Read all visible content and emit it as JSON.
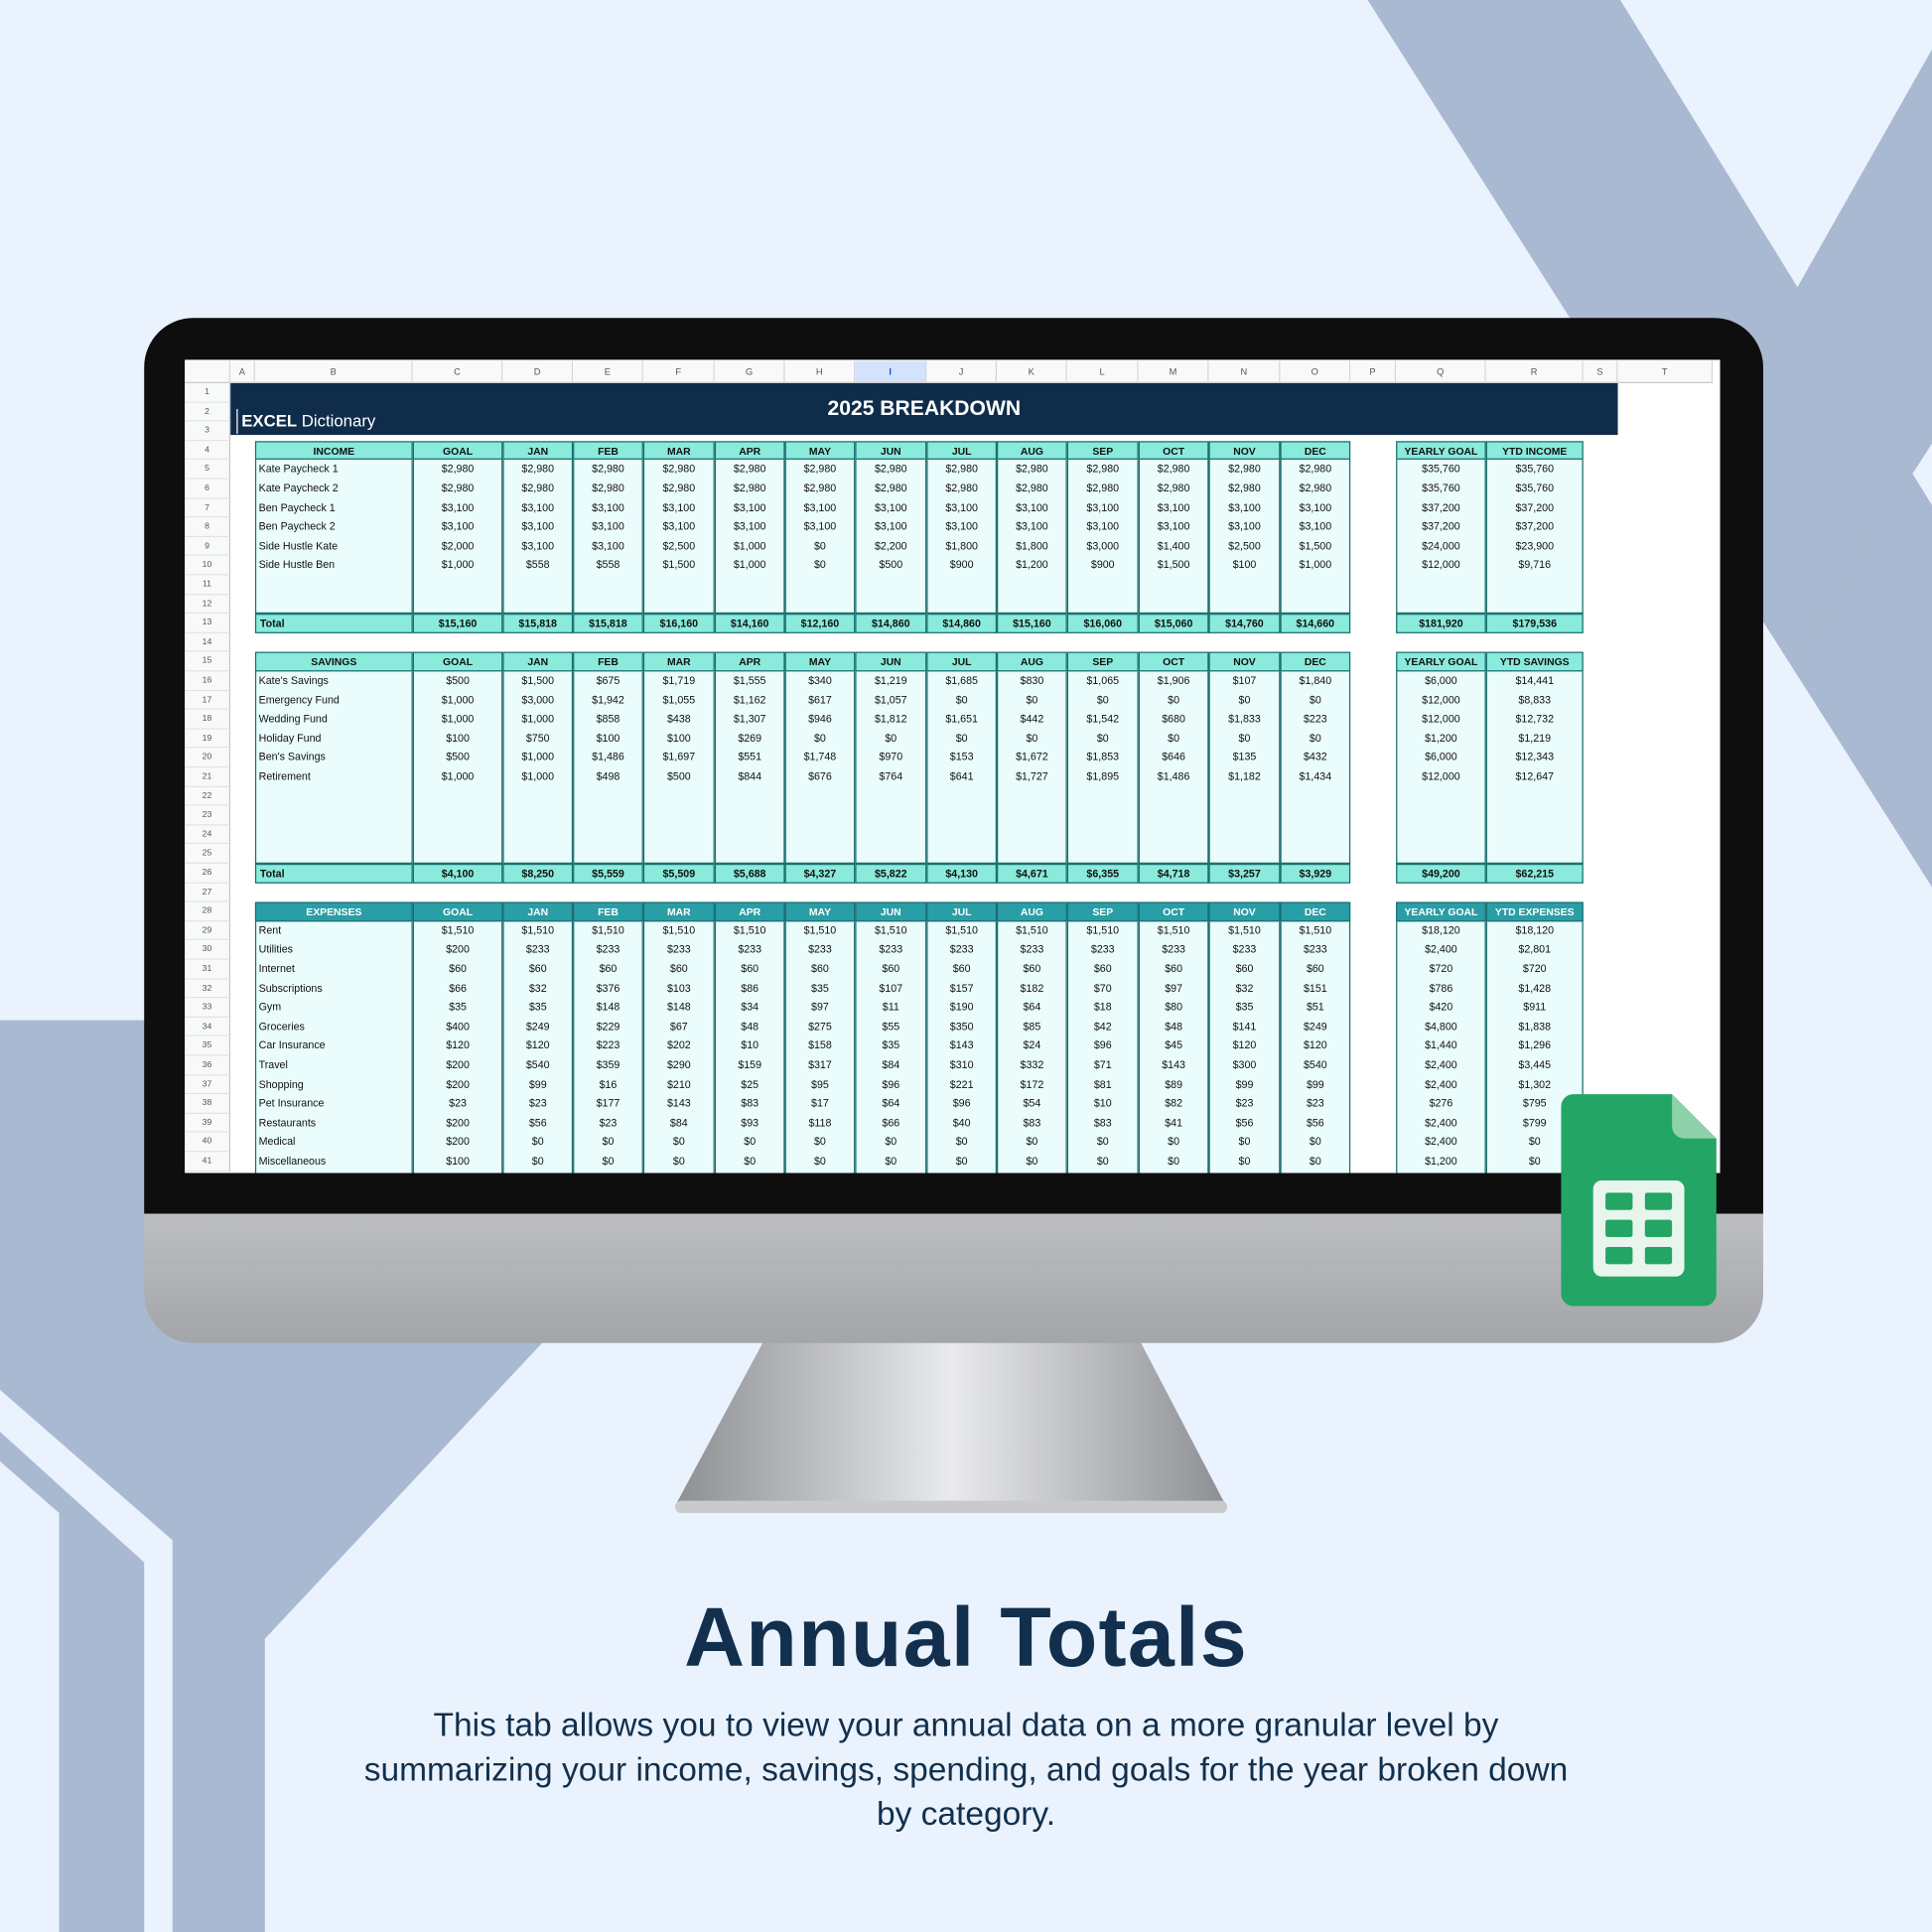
{
  "sheet": {
    "column_headers": [
      "A",
      "B",
      "C",
      "D",
      "E",
      "F",
      "G",
      "H",
      "I",
      "J",
      "K",
      "L",
      "M",
      "N",
      "O",
      "P",
      "Q",
      "R",
      "S",
      "T"
    ],
    "row_numbers": [
      1,
      2,
      3,
      4,
      5,
      6,
      7,
      8,
      9,
      10,
      11,
      12,
      13,
      14,
      15,
      16,
      17,
      18,
      19,
      20,
      21,
      22,
      23,
      24,
      25,
      26,
      27,
      28,
      29,
      30,
      31,
      32,
      33,
      34,
      35,
      36,
      37,
      38,
      39,
      40,
      41
    ],
    "logo": {
      "brand": "EXCEL",
      "name": "Dictionary"
    },
    "title": "2025 BREAKDOWN",
    "sections": [
      {
        "header": [
          "INCOME",
          "GOAL",
          "JAN",
          "FEB",
          "MAR",
          "APR",
          "MAY",
          "JUN",
          "JUL",
          "AUG",
          "SEP",
          "OCT",
          "NOV",
          "DEC"
        ],
        "summary_header": [
          "YEARLY GOAL",
          "YTD INCOME"
        ],
        "rows": [
          {
            "label": "Kate Paycheck 1",
            "monthly": [
              "$2,980",
              "$2,980",
              "$2,980",
              "$2,980",
              "$2,980",
              "$2,980",
              "$2,980",
              "$2,980",
              "$2,980",
              "$2,980",
              "$2,980",
              "$2,980",
              "$2,980"
            ],
            "summary": [
              "$35,760",
              "$35,760"
            ]
          },
          {
            "label": "Kate Paycheck 2",
            "monthly": [
              "$2,980",
              "$2,980",
              "$2,980",
              "$2,980",
              "$2,980",
              "$2,980",
              "$2,980",
              "$2,980",
              "$2,980",
              "$2,980",
              "$2,980",
              "$2,980",
              "$2,980"
            ],
            "summary": [
              "$35,760",
              "$35,760"
            ]
          },
          {
            "label": "Ben Paycheck 1",
            "monthly": [
              "$3,100",
              "$3,100",
              "$3,100",
              "$3,100",
              "$3,100",
              "$3,100",
              "$3,100",
              "$3,100",
              "$3,100",
              "$3,100",
              "$3,100",
              "$3,100",
              "$3,100"
            ],
            "summary": [
              "$37,200",
              "$37,200"
            ]
          },
          {
            "label": "Ben Paycheck 2",
            "monthly": [
              "$3,100",
              "$3,100",
              "$3,100",
              "$3,100",
              "$3,100",
              "$3,100",
              "$3,100",
              "$3,100",
              "$3,100",
              "$3,100",
              "$3,100",
              "$3,100",
              "$3,100"
            ],
            "summary": [
              "$37,200",
              "$37,200"
            ]
          },
          {
            "label": "Side Hustle Kate",
            "monthly": [
              "$2,000",
              "$3,100",
              "$3,100",
              "$2,500",
              "$1,000",
              "$0",
              "$2,200",
              "$1,800",
              "$1,800",
              "$3,000",
              "$1,400",
              "$2,500",
              "$1,500"
            ],
            "summary": [
              "$24,000",
              "$23,900"
            ]
          },
          {
            "label": "Side Hustle Ben",
            "monthly": [
              "$1,000",
              "$558",
              "$558",
              "$1,500",
              "$1,000",
              "$0",
              "$500",
              "$900",
              "$1,200",
              "$900",
              "$1,500",
              "$100",
              "$1,000"
            ],
            "summary": [
              "$12,000",
              "$9,716"
            ]
          }
        ],
        "total": {
          "label": "Total",
          "monthly": [
            "$15,160",
            "$15,818",
            "$15,818",
            "$16,160",
            "$14,160",
            "$12,160",
            "$14,860",
            "$14,860",
            "$15,160",
            "$16,060",
            "$15,060",
            "$14,760",
            "$14,660"
          ],
          "summary": [
            "$181,920",
            "$179,536"
          ]
        }
      },
      {
        "header": [
          "SAVINGS",
          "GOAL",
          "JAN",
          "FEB",
          "MAR",
          "APR",
          "MAY",
          "JUN",
          "JUL",
          "AUG",
          "SEP",
          "OCT",
          "NOV",
          "DEC"
        ],
        "summary_header": [
          "YEARLY GOAL",
          "YTD SAVINGS"
        ],
        "rows": [
          {
            "label": "Kate's Savings",
            "monthly": [
              "$500",
              "$1,500",
              "$675",
              "$1,719",
              "$1,555",
              "$340",
              "$1,219",
              "$1,685",
              "$830",
              "$1,065",
              "$1,906",
              "$107",
              "$1,840"
            ],
            "summary": [
              "$6,000",
              "$14,441"
            ]
          },
          {
            "label": "Emergency Fund",
            "monthly": [
              "$1,000",
              "$3,000",
              "$1,942",
              "$1,055",
              "$1,162",
              "$617",
              "$1,057",
              "$0",
              "$0",
              "$0",
              "$0",
              "$0",
              "$0"
            ],
            "summary": [
              "$12,000",
              "$8,833"
            ]
          },
          {
            "label": "Wedding Fund",
            "monthly": [
              "$1,000",
              "$1,000",
              "$858",
              "$438",
              "$1,307",
              "$946",
              "$1,812",
              "$1,651",
              "$442",
              "$1,542",
              "$680",
              "$1,833",
              "$223"
            ],
            "summary": [
              "$12,000",
              "$12,732"
            ]
          },
          {
            "label": "Holiday Fund",
            "monthly": [
              "$100",
              "$750",
              "$100",
              "$100",
              "$269",
              "$0",
              "$0",
              "$0",
              "$0",
              "$0",
              "$0",
              "$0",
              "$0"
            ],
            "summary": [
              "$1,200",
              "$1,219"
            ]
          },
          {
            "label": "Ben's Savings",
            "monthly": [
              "$500",
              "$1,000",
              "$1,486",
              "$1,697",
              "$551",
              "$1,748",
              "$970",
              "$153",
              "$1,672",
              "$1,853",
              "$646",
              "$135",
              "$432"
            ],
            "summary": [
              "$6,000",
              "$12,343"
            ]
          },
          {
            "label": "Retirement",
            "monthly": [
              "$1,000",
              "$1,000",
              "$498",
              "$500",
              "$844",
              "$676",
              "$764",
              "$641",
              "$1,727",
              "$1,895",
              "$1,486",
              "$1,182",
              "$1,434"
            ],
            "summary": [
              "$12,000",
              "$12,647"
            ]
          }
        ],
        "total": {
          "label": "Total",
          "monthly": [
            "$4,100",
            "$8,250",
            "$5,559",
            "$5,509",
            "$5,688",
            "$4,327",
            "$5,822",
            "$4,130",
            "$4,671",
            "$6,355",
            "$4,718",
            "$3,257",
            "$3,929"
          ],
          "summary": [
            "$49,200",
            "$62,215"
          ]
        }
      },
      {
        "header": [
          "EXPENSES",
          "GOAL",
          "JAN",
          "FEB",
          "MAR",
          "APR",
          "MAY",
          "JUN",
          "JUL",
          "AUG",
          "SEP",
          "OCT",
          "NOV",
          "DEC"
        ],
        "summary_header": [
          "YEARLY GOAL",
          "YTD EXPENSES"
        ],
        "rows": [
          {
            "label": "Rent",
            "monthly": [
              "$1,510",
              "$1,510",
              "$1,510",
              "$1,510",
              "$1,510",
              "$1,510",
              "$1,510",
              "$1,510",
              "$1,510",
              "$1,510",
              "$1,510",
              "$1,510",
              "$1,510"
            ],
            "summary": [
              "$18,120",
              "$18,120"
            ]
          },
          {
            "label": "Utilities",
            "monthly": [
              "$200",
              "$233",
              "$233",
              "$233",
              "$233",
              "$233",
              "$233",
              "$233",
              "$233",
              "$233",
              "$233",
              "$233",
              "$233"
            ],
            "summary": [
              "$2,400",
              "$2,801"
            ]
          },
          {
            "label": "Internet",
            "monthly": [
              "$60",
              "$60",
              "$60",
              "$60",
              "$60",
              "$60",
              "$60",
              "$60",
              "$60",
              "$60",
              "$60",
              "$60",
              "$60"
            ],
            "summary": [
              "$720",
              "$720"
            ]
          },
          {
            "label": "Subscriptions",
            "monthly": [
              "$66",
              "$32",
              "$376",
              "$103",
              "$86",
              "$35",
              "$107",
              "$157",
              "$182",
              "$70",
              "$97",
              "$32",
              "$151"
            ],
            "summary": [
              "$786",
              "$1,428"
            ]
          },
          {
            "label": "Gym",
            "monthly": [
              "$35",
              "$35",
              "$148",
              "$148",
              "$34",
              "$97",
              "$11",
              "$190",
              "$64",
              "$18",
              "$80",
              "$35",
              "$51"
            ],
            "summary": [
              "$420",
              "$911"
            ]
          },
          {
            "label": "Groceries",
            "monthly": [
              "$400",
              "$249",
              "$229",
              "$67",
              "$48",
              "$275",
              "$55",
              "$350",
              "$85",
              "$42",
              "$48",
              "$141",
              "$249"
            ],
            "summary": [
              "$4,800",
              "$1,838"
            ]
          },
          {
            "label": "Car Insurance",
            "monthly": [
              "$120",
              "$120",
              "$223",
              "$202",
              "$10",
              "$158",
              "$35",
              "$143",
              "$24",
              "$96",
              "$45",
              "$120",
              "$120"
            ],
            "summary": [
              "$1,440",
              "$1,296"
            ]
          },
          {
            "label": "Travel",
            "monthly": [
              "$200",
              "$540",
              "$359",
              "$290",
              "$159",
              "$317",
              "$84",
              "$310",
              "$332",
              "$71",
              "$143",
              "$300",
              "$540"
            ],
            "summary": [
              "$2,400",
              "$3,445"
            ]
          },
          {
            "label": "Shopping",
            "monthly": [
              "$200",
              "$99",
              "$16",
              "$210",
              "$25",
              "$95",
              "$96",
              "$221",
              "$172",
              "$81",
              "$89",
              "$99",
              "$99"
            ],
            "summary": [
              "$2,400",
              "$1,302"
            ]
          },
          {
            "label": "Pet Insurance",
            "monthly": [
              "$23",
              "$23",
              "$177",
              "$143",
              "$83",
              "$17",
              "$64",
              "$96",
              "$54",
              "$10",
              "$82",
              "$23",
              "$23"
            ],
            "summary": [
              "$276",
              "$795"
            ]
          },
          {
            "label": "Restaurants",
            "monthly": [
              "$200",
              "$56",
              "$23",
              "$84",
              "$93",
              "$118",
              "$66",
              "$40",
              "$83",
              "$83",
              "$41",
              "$56",
              "$56"
            ],
            "summary": [
              "$2,400",
              "$799"
            ]
          },
          {
            "label": "Medical",
            "monthly": [
              "$200",
              "$0",
              "$0",
              "$0",
              "$0",
              "$0",
              "$0",
              "$0",
              "$0",
              "$0",
              "$0",
              "$0",
              "$0"
            ],
            "summary": [
              "$2,400",
              "$0"
            ]
          },
          {
            "label": "Miscellaneous",
            "monthly": [
              "$100",
              "$0",
              "$0",
              "$0",
              "$0",
              "$0",
              "$0",
              "$0",
              "$0",
              "$0",
              "$0",
              "$0",
              "$0"
            ],
            "summary": [
              "$1,200",
              "$0"
            ]
          }
        ]
      }
    ]
  },
  "heading": "Annual Totals",
  "description": "This tab allows you to view your annual data on a more granular level by summarizing your income, savings, spending, and goals for the year broken down by category."
}
